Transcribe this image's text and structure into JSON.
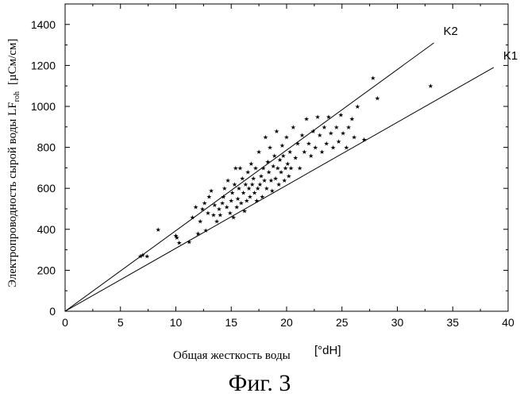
{
  "chart_data": {
    "type": "scatter",
    "title": "",
    "xlabel": "Общая жесткость воды",
    "xunit": "[°dH]",
    "ylabel_prefix": "Электропроводность сырой воды LF",
    "ylabel_sub": "roh",
    "yunit": "[µСм/см]",
    "xlim": [
      0,
      40
    ],
    "ylim": [
      0,
      1500
    ],
    "xticks": [
      0,
      5,
      10,
      15,
      20,
      25,
      30,
      35,
      40
    ],
    "yticks": [
      0,
      200,
      400,
      600,
      800,
      1000,
      1200,
      1400
    ],
    "grid": false,
    "lines": [
      {
        "name": "K2",
        "x": [
          0,
          33.3
        ],
        "y": [
          0,
          1310
        ]
      },
      {
        "name": "K1",
        "x": [
          0,
          38.7
        ],
        "y": [
          0,
          1190
        ]
      }
    ],
    "points": [
      [
        6.8,
        270
      ],
      [
        7.0,
        275
      ],
      [
        7.4,
        270
      ],
      [
        8.4,
        400
      ],
      [
        10.0,
        370
      ],
      [
        10.1,
        360
      ],
      [
        10.3,
        335
      ],
      [
        11.2,
        340
      ],
      [
        11.5,
        460
      ],
      [
        11.8,
        510
      ],
      [
        12.0,
        380
      ],
      [
        12.2,
        440
      ],
      [
        12.4,
        500
      ],
      [
        12.6,
        530
      ],
      [
        12.7,
        395
      ],
      [
        12.9,
        480
      ],
      [
        13.0,
        560
      ],
      [
        13.2,
        590
      ],
      [
        13.4,
        470
      ],
      [
        13.5,
        520
      ],
      [
        13.7,
        440
      ],
      [
        13.9,
        500
      ],
      [
        14.0,
        470
      ],
      [
        14.2,
        530
      ],
      [
        14.3,
        560
      ],
      [
        14.4,
        600
      ],
      [
        14.6,
        510
      ],
      [
        14.7,
        640
      ],
      [
        14.9,
        480
      ],
      [
        15.0,
        540
      ],
      [
        15.1,
        580
      ],
      [
        15.2,
        460
      ],
      [
        15.3,
        620
      ],
      [
        15.4,
        700
      ],
      [
        15.5,
        510
      ],
      [
        15.6,
        550
      ],
      [
        15.7,
        600
      ],
      [
        15.8,
        700
      ],
      [
        15.9,
        530
      ],
      [
        16.0,
        650
      ],
      [
        16.1,
        580
      ],
      [
        16.2,
        490
      ],
      [
        16.3,
        620
      ],
      [
        16.4,
        540
      ],
      [
        16.5,
        680
      ],
      [
        16.6,
        600
      ],
      [
        16.7,
        560
      ],
      [
        16.8,
        720
      ],
      [
        16.9,
        620
      ],
      [
        17.0,
        650
      ],
      [
        17.1,
        580
      ],
      [
        17.2,
        700
      ],
      [
        17.3,
        540
      ],
      [
        17.4,
        600
      ],
      [
        17.5,
        780
      ],
      [
        17.6,
        620
      ],
      [
        17.7,
        660
      ],
      [
        17.8,
        560
      ],
      [
        17.9,
        700
      ],
      [
        18.0,
        640
      ],
      [
        18.1,
        850
      ],
      [
        18.2,
        600
      ],
      [
        18.3,
        730
      ],
      [
        18.4,
        680
      ],
      [
        18.5,
        800
      ],
      [
        18.6,
        640
      ],
      [
        18.7,
        590
      ],
      [
        18.8,
        710
      ],
      [
        18.9,
        760
      ],
      [
        19.0,
        650
      ],
      [
        19.1,
        880
      ],
      [
        19.2,
        700
      ],
      [
        19.3,
        620
      ],
      [
        19.4,
        740
      ],
      [
        19.5,
        680
      ],
      [
        19.6,
        810
      ],
      [
        19.7,
        760
      ],
      [
        19.8,
        640
      ],
      [
        19.9,
        700
      ],
      [
        20.0,
        850
      ],
      [
        20.1,
        720
      ],
      [
        20.2,
        660
      ],
      [
        20.3,
        780
      ],
      [
        20.4,
        700
      ],
      [
        20.6,
        900
      ],
      [
        20.8,
        750
      ],
      [
        21.0,
        820
      ],
      [
        21.2,
        700
      ],
      [
        21.4,
        860
      ],
      [
        21.6,
        780
      ],
      [
        21.8,
        940
      ],
      [
        22.0,
        820
      ],
      [
        22.2,
        760
      ],
      [
        22.4,
        880
      ],
      [
        22.6,
        800
      ],
      [
        22.8,
        950
      ],
      [
        23.0,
        860
      ],
      [
        23.2,
        780
      ],
      [
        23.4,
        900
      ],
      [
        23.6,
        820
      ],
      [
        23.8,
        950
      ],
      [
        24.0,
        870
      ],
      [
        24.2,
        800
      ],
      [
        24.5,
        900
      ],
      [
        24.7,
        830
      ],
      [
        24.9,
        960
      ],
      [
        25.1,
        870
      ],
      [
        25.4,
        800
      ],
      [
        25.6,
        900
      ],
      [
        25.9,
        940
      ],
      [
        26.1,
        850
      ],
      [
        26.4,
        1000
      ],
      [
        27.0,
        840
      ],
      [
        27.8,
        1140
      ],
      [
        28.2,
        1040
      ],
      [
        33.0,
        1100
      ]
    ]
  },
  "figure_caption": "Фиг. 3"
}
